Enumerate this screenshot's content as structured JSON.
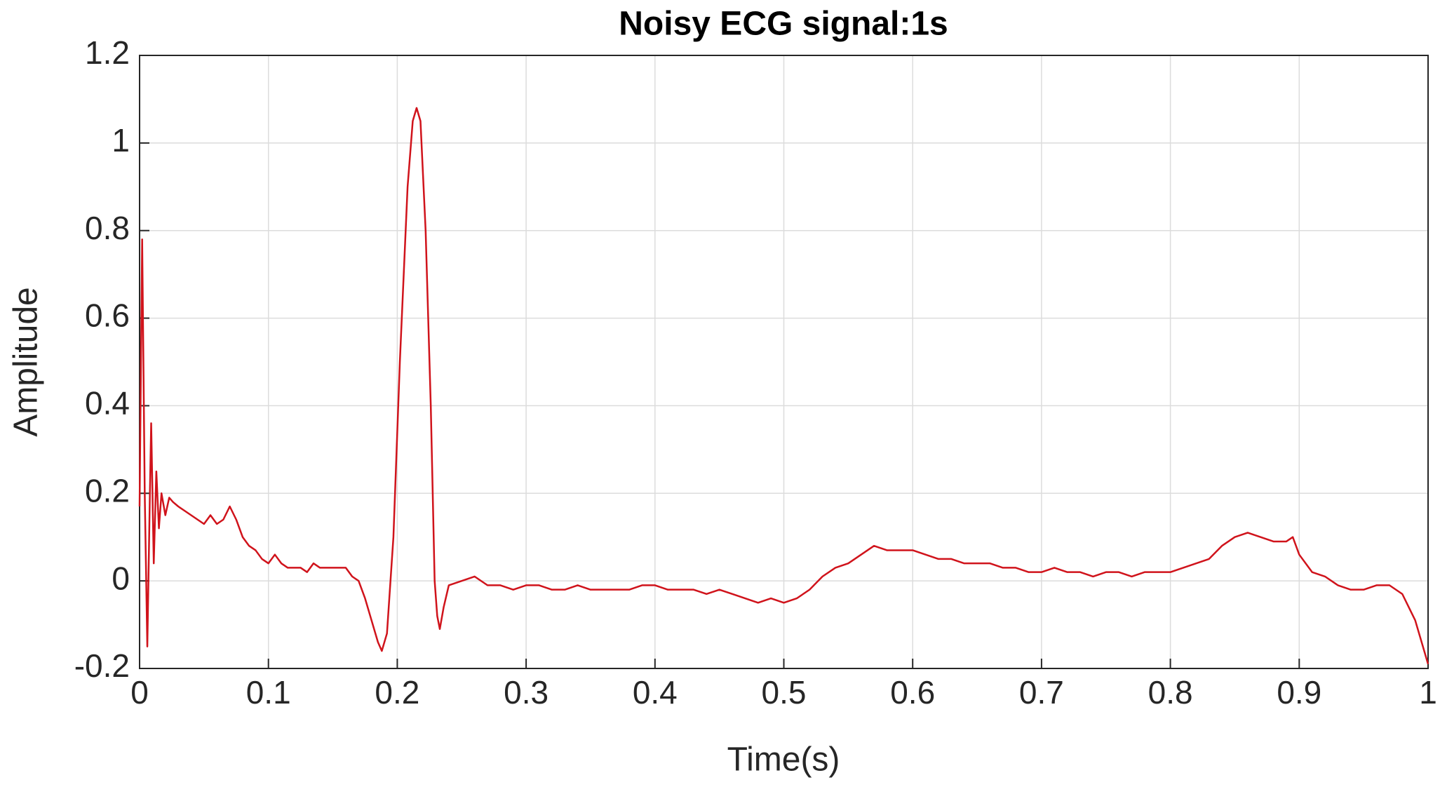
{
  "chart_data": {
    "type": "line",
    "title": "Noisy ECG signal:1s",
    "xlabel": "Time(s)",
    "ylabel": "Amplitude",
    "x": [
      0,
      0.002,
      0.004,
      0.006,
      0.008,
      0.009,
      0.011,
      0.013,
      0.015,
      0.017,
      0.02,
      0.023,
      0.026,
      0.03,
      0.035,
      0.04,
      0.045,
      0.05,
      0.055,
      0.06,
      0.065,
      0.07,
      0.075,
      0.08,
      0.085,
      0.09,
      0.095,
      0.1,
      0.105,
      0.11,
      0.115,
      0.12,
      0.125,
      0.13,
      0.135,
      0.14,
      0.145,
      0.15,
      0.155,
      0.16,
      0.165,
      0.17,
      0.175,
      0.18,
      0.185,
      0.188,
      0.192,
      0.197,
      0.202,
      0.208,
      0.212,
      0.215,
      0.218,
      0.222,
      0.226,
      0.229,
      0.231,
      0.233,
      0.236,
      0.24,
      0.25,
      0.26,
      0.27,
      0.28,
      0.29,
      0.3,
      0.31,
      0.32,
      0.33,
      0.34,
      0.35,
      0.36,
      0.37,
      0.38,
      0.39,
      0.4,
      0.41,
      0.42,
      0.43,
      0.44,
      0.45,
      0.46,
      0.47,
      0.48,
      0.49,
      0.5,
      0.51,
      0.52,
      0.53,
      0.54,
      0.55,
      0.56,
      0.57,
      0.58,
      0.59,
      0.6,
      0.61,
      0.62,
      0.63,
      0.64,
      0.65,
      0.66,
      0.67,
      0.68,
      0.69,
      0.7,
      0.71,
      0.72,
      0.73,
      0.74,
      0.75,
      0.76,
      0.77,
      0.78,
      0.79,
      0.8,
      0.81,
      0.82,
      0.83,
      0.84,
      0.85,
      0.86,
      0.87,
      0.88,
      0.89,
      0.895,
      0.9,
      0.91,
      0.92,
      0.93,
      0.94,
      0.95,
      0.96,
      0.97,
      0.98,
      0.99,
      1
    ],
    "values": [
      0.17,
      0.78,
      0.2,
      -0.15,
      0.2,
      0.36,
      0.04,
      0.25,
      0.12,
      0.2,
      0.15,
      0.19,
      0.18,
      0.17,
      0.16,
      0.15,
      0.14,
      0.13,
      0.15,
      0.13,
      0.14,
      0.17,
      0.14,
      0.1,
      0.08,
      0.07,
      0.05,
      0.04,
      0.06,
      0.04,
      0.03,
      0.03,
      0.03,
      0.02,
      0.04,
      0.03,
      0.03,
      0.03,
      0.03,
      0.03,
      0.01,
      0,
      -0.04,
      -0.09,
      -0.14,
      -0.16,
      -0.12,
      0.1,
      0.5,
      0.9,
      1.05,
      1.08,
      1.05,
      0.8,
      0.4,
      0,
      -0.08,
      -0.11,
      -0.06,
      -0.01,
      0,
      0.01,
      -0.01,
      -0.01,
      -0.02,
      -0.01,
      -0.01,
      -0.02,
      -0.02,
      -0.01,
      -0.02,
      -0.02,
      -0.02,
      -0.02,
      -0.01,
      -0.01,
      -0.02,
      -0.02,
      -0.02,
      -0.03,
      -0.02,
      -0.03,
      -0.04,
      -0.05,
      -0.04,
      -0.05,
      -0.04,
      -0.02,
      0.01,
      0.03,
      0.04,
      0.06,
      0.08,
      0.07,
      0.07,
      0.07,
      0.06,
      0.05,
      0.05,
      0.04,
      0.04,
      0.04,
      0.03,
      0.03,
      0.02,
      0.02,
      0.03,
      0.02,
      0.02,
      0.01,
      0.02,
      0.02,
      0.01,
      0.02,
      0.02,
      0.02,
      0.03,
      0.04,
      0.05,
      0.08,
      0.1,
      0.11,
      0.1,
      0.09,
      0.09,
      0.1,
      0.06,
      0.02,
      0.01,
      -0.01,
      -0.02,
      -0.02,
      -0.01,
      -0.01,
      -0.03,
      -0.09,
      -0.19
    ],
    "color": "#d0131b",
    "xlim": [
      0,
      1
    ],
    "xticks": [
      0,
      0.1,
      0.2,
      0.3,
      0.4,
      0.5,
      0.6,
      0.7,
      0.8,
      0.9,
      1
    ],
    "ylim": [
      -0.2,
      1.2
    ],
    "yticks": [
      -0.2,
      0,
      0.2,
      0.4,
      0.6,
      0.8,
      1,
      1.2
    ],
    "grid": true
  }
}
